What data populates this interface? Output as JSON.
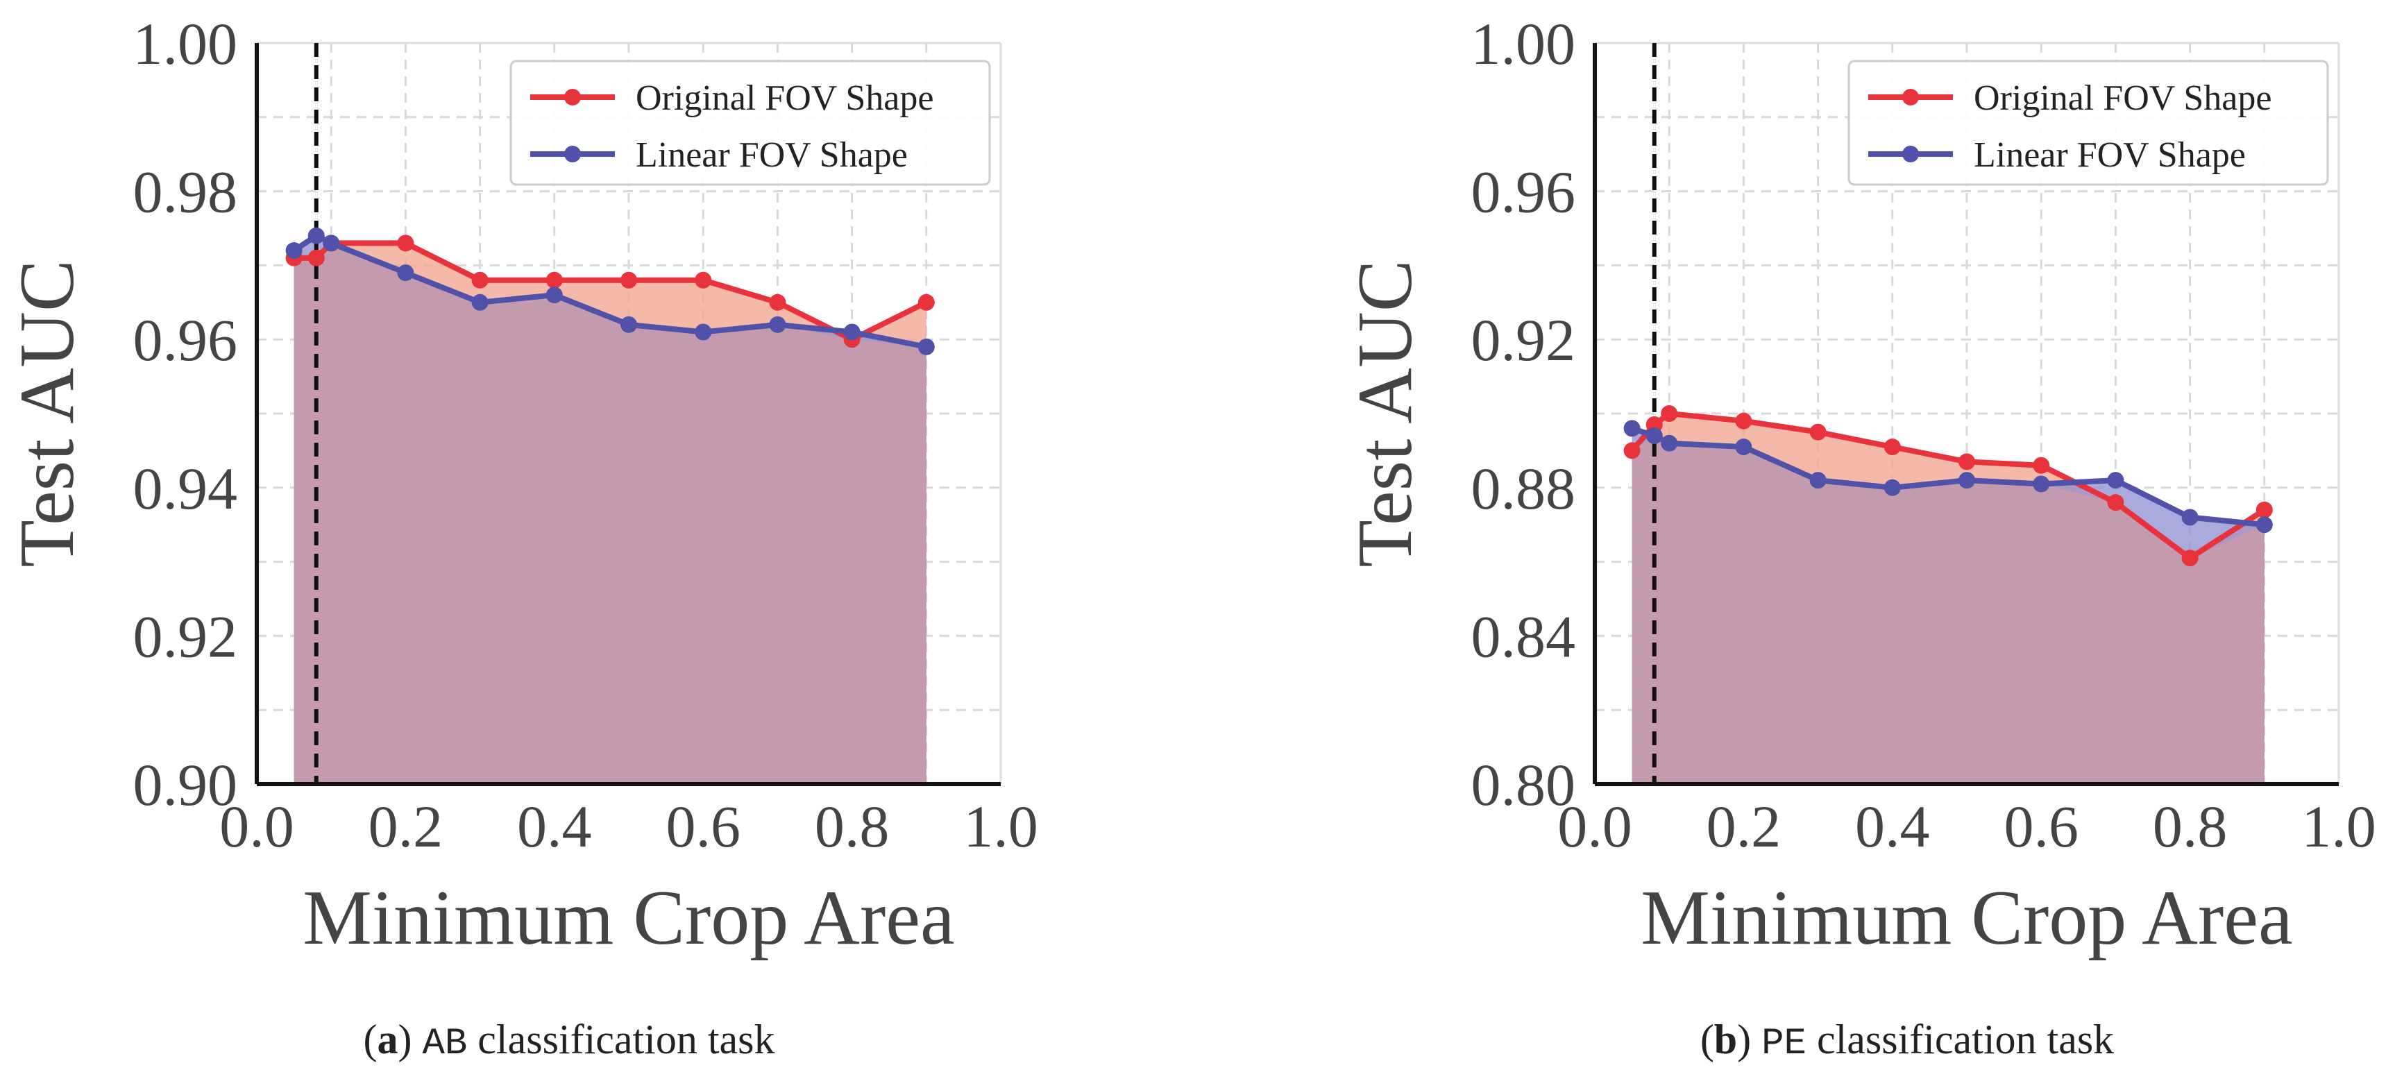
{
  "colors": {
    "original": "#e8323c",
    "linear": "#4f52a8",
    "original_fill": "#f2a28e",
    "linear_fill": "#8d8fd0",
    "overlap_fill": "#c49aae",
    "grid": "#d9d9d9",
    "axis": "#111111"
  },
  "chart_data": [
    {
      "type": "line",
      "panel_id": "a",
      "caption": {
        "letter": "a",
        "dataset": "AB",
        "text": "classification task"
      },
      "xlabel": "Minimum Crop Area",
      "ylabel": "Test AUC",
      "xlim": [
        0.0,
        1.0
      ],
      "ylim": [
        0.9,
        1.0
      ],
      "xticks": [
        "0.0",
        "0.2",
        "0.4",
        "0.6",
        "0.8",
        "1.0"
      ],
      "yticks": [
        "0.90",
        "0.92",
        "0.94",
        "0.96",
        "0.98",
        "1.00"
      ],
      "xtick_values": [
        0.0,
        0.2,
        0.4,
        0.6,
        0.8,
        1.0
      ],
      "ytick_values": [
        0.9,
        0.92,
        0.94,
        0.96,
        0.98,
        1.0
      ],
      "vline_x": 0.08,
      "legend_position": "upper-right",
      "series": [
        {
          "name": "Original FOV Shape",
          "key": "original",
          "x": [
            0.05,
            0.08,
            0.1,
            0.2,
            0.3,
            0.4,
            0.5,
            0.6,
            0.7,
            0.8,
            0.9
          ],
          "y": [
            0.971,
            0.971,
            0.973,
            0.973,
            0.968,
            0.968,
            0.968,
            0.968,
            0.965,
            0.96,
            0.965
          ]
        },
        {
          "name": "Linear FOV Shape",
          "key": "linear",
          "x": [
            0.05,
            0.08,
            0.1,
            0.2,
            0.3,
            0.4,
            0.5,
            0.6,
            0.7,
            0.8,
            0.9
          ],
          "y": [
            0.972,
            0.974,
            0.973,
            0.969,
            0.965,
            0.966,
            0.962,
            0.961,
            0.962,
            0.961,
            0.959
          ]
        }
      ]
    },
    {
      "type": "line",
      "panel_id": "b",
      "caption": {
        "letter": "b",
        "dataset": "PE",
        "text": "classification task"
      },
      "xlabel": "Minimum Crop Area",
      "ylabel": "Test AUC",
      "xlim": [
        0.0,
        1.0
      ],
      "ylim": [
        0.8,
        1.0
      ],
      "xticks": [
        "0.0",
        "0.2",
        "0.4",
        "0.6",
        "0.8",
        "1.0"
      ],
      "yticks": [
        "0.80",
        "0.84",
        "0.88",
        "0.92",
        "0.96",
        "1.00"
      ],
      "xtick_values": [
        0.0,
        0.2,
        0.4,
        0.6,
        0.8,
        1.0
      ],
      "ytick_values": [
        0.8,
        0.84,
        0.88,
        0.92,
        0.96,
        1.0
      ],
      "vline_x": 0.08,
      "legend_position": "upper-right",
      "series": [
        {
          "name": "Original FOV Shape",
          "key": "original",
          "x": [
            0.05,
            0.08,
            0.1,
            0.2,
            0.3,
            0.4,
            0.5,
            0.6,
            0.7,
            0.8,
            0.9
          ],
          "y": [
            0.89,
            0.897,
            0.9,
            0.898,
            0.895,
            0.891,
            0.887,
            0.886,
            0.876,
            0.861,
            0.874
          ]
        },
        {
          "name": "Linear FOV Shape",
          "key": "linear",
          "x": [
            0.05,
            0.08,
            0.1,
            0.2,
            0.3,
            0.4,
            0.5,
            0.6,
            0.7,
            0.8,
            0.9
          ],
          "y": [
            0.896,
            0.894,
            0.892,
            0.891,
            0.882,
            0.88,
            0.882,
            0.881,
            0.882,
            0.872,
            0.87
          ]
        }
      ]
    }
  ]
}
